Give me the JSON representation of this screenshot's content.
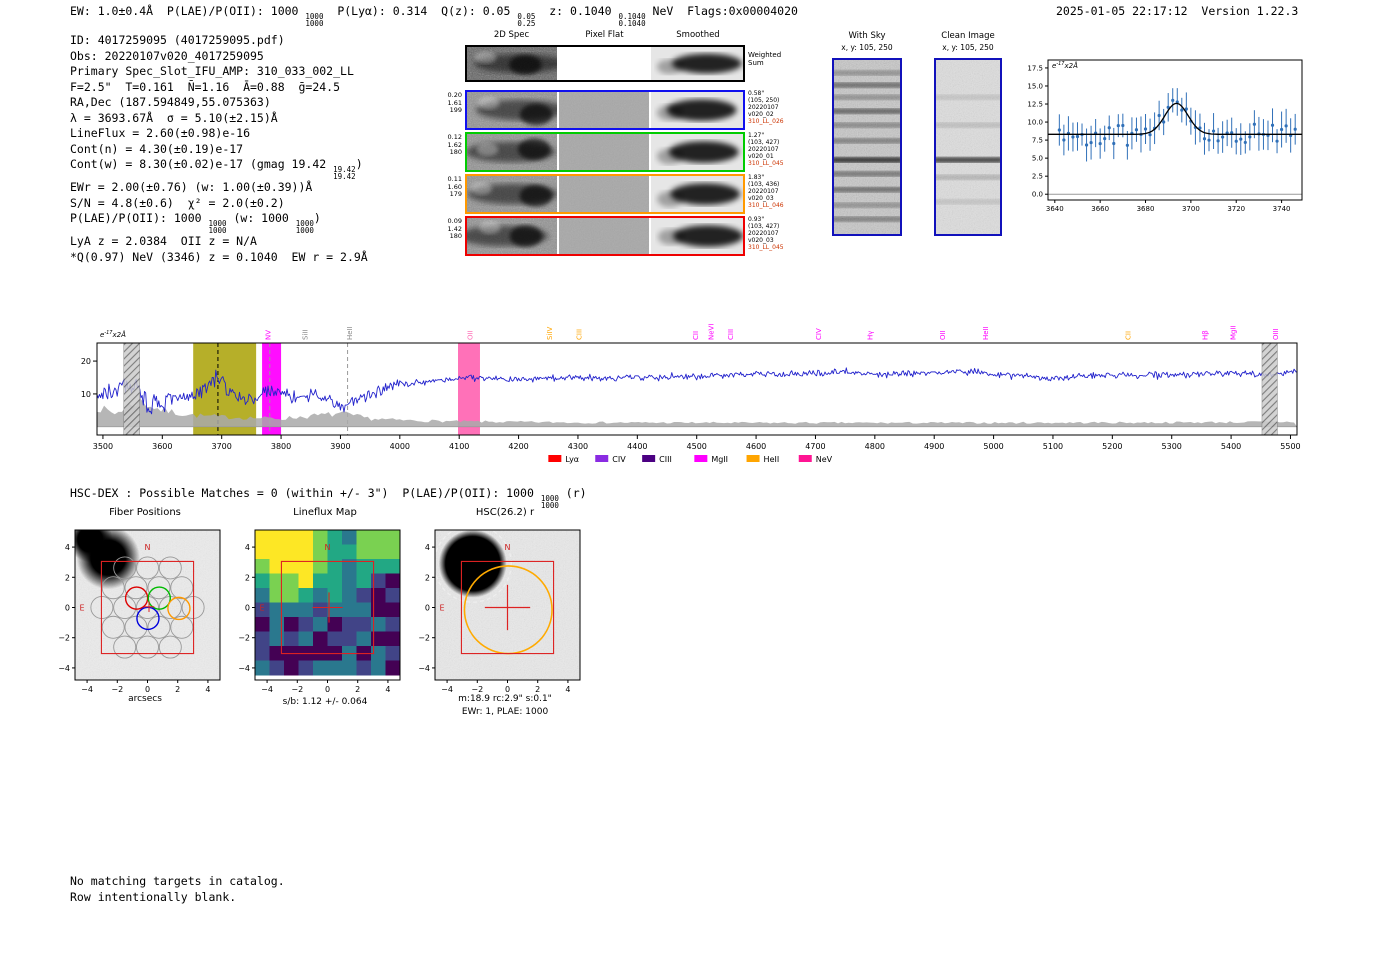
{
  "header": {
    "left_segments": [
      {
        "t": "EW: 1.0±0.4Å  P(LAE)/P(OII): 1000 "
      },
      {
        "f": [
          "1000",
          "1000"
        ]
      },
      {
        "t": "  P(Lyα): 0.314  Q(z): 0.05 "
      },
      {
        "f": [
          "0.05",
          "0.25"
        ]
      },
      {
        "t": "  z: 0.1040 "
      },
      {
        "f": [
          "0.1040",
          "0.1040"
        ]
      },
      {
        "t": " NeV  Flags:0x00004020"
      }
    ],
    "right": "2025-01-05 22:17:12  Version 1.22.3"
  },
  "info_lines": [
    [
      {
        "t": "ID: 4017259095 (4017259095.pdf)"
      }
    ],
    [
      {
        "t": "Obs: 20220107v020_4017259095"
      }
    ],
    [
      {
        "t": "Primary Spec_Slot_IFU_AMP: 310_033_002_LL"
      }
    ],
    [
      {
        "t": "F=2.5\"  T=0.161  N̄=1.16  Ā=0.88  ḡ=24.5"
      }
    ],
    [
      {
        "t": "RA,Dec (187.594849,55.075363)"
      }
    ],
    [
      {
        "t": "λ = 3693.67Å  σ = 5.10(±2.15)Å"
      }
    ],
    [
      {
        "t": "LineFlux = 2.60(±0.98)e-16"
      }
    ],
    [
      {
        "t": "Cont(n) = 4.30(±0.19)e-17"
      }
    ],
    [
      {
        "t": "Cont(w) = 8.30(±0.02)e-17 (gmag 19.42 "
      },
      {
        "f": [
          "19.42",
          "19.42"
        ]
      },
      {
        "t": ")"
      }
    ],
    [
      {
        "t": "EWr = 2.00(±0.76) (w: 1.00(±0.39))Å"
      }
    ],
    [
      {
        "t": "S/N = 4.8(±0.6)  χ² = 2.0(±0.2)"
      }
    ],
    [
      {
        "t": "P(LAE)/P(OII): 1000 "
      },
      {
        "f": [
          "1000",
          "1000"
        ]
      },
      {
        "t": " (w: 1000 "
      },
      {
        "f": [
          "1000",
          "1000"
        ]
      },
      {
        "t": ")"
      }
    ],
    [
      {
        "t": "LyA z = 2.0384  OII z = N/A"
      }
    ],
    [
      {
        "t": "*Q(0.97) NeV (3346) z = 0.1040  EW r = 2.9Å"
      }
    ]
  ],
  "spec2d": {
    "col_headers": [
      "2D Spec",
      "Pixel Flat",
      "Smoothed"
    ],
    "weighted_sum_lines": [
      "Weighted",
      "Sum"
    ],
    "rows": [
      {
        "border": "#000000",
        "left_labels": [],
        "right_lines": []
      },
      {
        "border": "#1010ee",
        "left_labels": [
          "0.20",
          "1.61",
          "199"
        ],
        "right_lines": [
          "0.58\"",
          "(105, 250)",
          "20220107",
          "v020_02",
          "310_LL_026"
        ]
      },
      {
        "border": "#00cc00",
        "left_labels": [
          "0.12",
          "1.62",
          "180"
        ],
        "right_lines": [
          "1.27\"",
          "(103, 427)",
          "20220107",
          "v020_01",
          "310_LL_045"
        ]
      },
      {
        "border": "#ff9900",
        "left_labels": [
          "0.11",
          "1.60",
          "179"
        ],
        "right_lines": [
          "1.83\"",
          "(103, 436)",
          "20220107",
          "v020_03",
          "310_LL_046"
        ]
      },
      {
        "border": "#ee0000",
        "left_labels": [
          "0.09",
          "1.42",
          "180"
        ],
        "right_lines": [
          "0.93\"",
          "(103, 427)",
          "20220107",
          "v020_03",
          "310_LL_045"
        ]
      }
    ]
  },
  "sky_panels": {
    "with_sky": {
      "title": "With Sky",
      "coords": "x, y: 105, 250"
    },
    "clean": {
      "title": "Clean Image",
      "coords": "x, y: 105, 250"
    }
  },
  "hsc_dex_segments": [
    {
      "t": "HSC-DEX : Possible Matches = 0 (within +/- 3\")  P(LAE)/P(OII): 1000 "
    },
    {
      "f": [
        "1000",
        "1000"
      ]
    },
    {
      "t": " (r)"
    }
  ],
  "footer_lines": [
    "No matching targets in catalog.",
    "Row intentionally blank."
  ],
  "chart_data": [
    {
      "id": "line_fit",
      "type": "scatter",
      "description": "Zoom on detected emission line with Gaussian fit",
      "ylabel": {
        "base": "e",
        "sup": "-17",
        "rest": "x2Å"
      },
      "x_ticks": [
        3640,
        3660,
        3680,
        3700,
        3720,
        3740
      ],
      "y_ticks": [
        0,
        2.5,
        5,
        7.5,
        10,
        12.5,
        15,
        17.5
      ],
      "x_range": [
        3637,
        3749
      ],
      "y_range": [
        -0.8,
        18.6
      ],
      "continuum_level": 8.3,
      "gaussian_fit": {
        "center": 3693.67,
        "sigma": 5.1,
        "peak": 12.6
      },
      "noise_sigma": 1.5,
      "error_bar": 2.0,
      "point_step": 2,
      "marker_color": "#3070b8",
      "fit_color": "#000000",
      "seed": 42
    },
    {
      "id": "full_spectrum",
      "type": "line",
      "description": "Full 1D spectrum",
      "ylabel": {
        "base": "e",
        "sup": "-17",
        "rest": "x2Å"
      },
      "line_color": "#2222cc",
      "x_ticks": [
        3500,
        3600,
        3700,
        3800,
        3900,
        4000,
        4100,
        4200,
        4300,
        4400,
        4500,
        4600,
        4700,
        4800,
        4900,
        5000,
        5100,
        5200,
        5300,
        5400,
        5500
      ],
      "y_ticks": [
        10,
        20
      ],
      "x_range": [
        3490,
        5511
      ],
      "y_range": [
        -2.5,
        25.5
      ],
      "anchors": [
        [
          3490,
          9
        ],
        [
          3520,
          11
        ],
        [
          3555,
          13
        ],
        [
          3580,
          6
        ],
        [
          3620,
          8
        ],
        [
          3655,
          10
        ],
        [
          3675,
          12
        ],
        [
          3694,
          15.5
        ],
        [
          3710,
          11
        ],
        [
          3740,
          8
        ],
        [
          3770,
          10
        ],
        [
          3800,
          11
        ],
        [
          3830,
          8
        ],
        [
          3860,
          10
        ],
        [
          3900,
          6
        ],
        [
          3930,
          8
        ],
        [
          3960,
          11
        ],
        [
          4000,
          13
        ],
        [
          4050,
          14
        ],
        [
          4120,
          15
        ],
        [
          4200,
          14.5
        ],
        [
          4300,
          15
        ],
        [
          4400,
          15
        ],
        [
          4500,
          15.5
        ],
        [
          4600,
          16
        ],
        [
          4700,
          16
        ],
        [
          4750,
          17
        ],
        [
          4800,
          16
        ],
        [
          4900,
          16.5
        ],
        [
          4950,
          17
        ],
        [
          5000,
          16
        ],
        [
          5050,
          15.5
        ],
        [
          5100,
          14.5
        ],
        [
          5150,
          15.5
        ],
        [
          5200,
          16
        ],
        [
          5250,
          15.5
        ],
        [
          5300,
          16
        ],
        [
          5350,
          16
        ],
        [
          5400,
          16.5
        ],
        [
          5450,
          16
        ],
        [
          5511,
          16.5
        ]
      ],
      "noise": {
        "amp_blue": 2.1,
        "amp_red": 1.0,
        "split": 4000
      },
      "error_anchors": [
        [
          3490,
          6
        ],
        [
          3520,
          4
        ],
        [
          3560,
          8
        ],
        [
          3600,
          5
        ],
        [
          3650,
          3.5
        ],
        [
          3700,
          3
        ],
        [
          3800,
          2.5
        ],
        [
          3900,
          4
        ],
        [
          3950,
          2.5
        ],
        [
          4000,
          2
        ],
        [
          4100,
          1.6
        ],
        [
          4300,
          1.3
        ],
        [
          4600,
          1.2
        ],
        [
          5000,
          1.2
        ],
        [
          5300,
          1.3
        ],
        [
          5511,
          1.5
        ]
      ],
      "bands": [
        {
          "x": [
            3535,
            3562
          ],
          "type": "hatch"
        },
        {
          "x": [
            3652,
            3758
          ],
          "type": "solid",
          "color": "#b2ab1e"
        },
        {
          "x": [
            3768,
            3800
          ],
          "type": "solid",
          "color": "#ff00ff"
        },
        {
          "x": [
            4098,
            4135
          ],
          "type": "solid",
          "color": "#ff69b4"
        },
        {
          "x": [
            5452,
            5478
          ],
          "type": "hatch"
        }
      ],
      "vlines": [
        {
          "x": 3693.67,
          "color": "#000000"
        },
        {
          "x": 3781,
          "color": "#999999"
        },
        {
          "x": 3912,
          "color": "#999999"
        }
      ],
      "line_labels": [
        {
          "wl": 3778,
          "label": "NV",
          "color": "#ff00ff"
        },
        {
          "wl": 3840,
          "label": "SiII",
          "color": "#888888"
        },
        {
          "wl": 3915,
          "label": "HeII",
          "color": "#888888"
        },
        {
          "wl": 4118,
          "label": "OII",
          "color": "#ff69b4"
        },
        {
          "wl": 4252,
          "label": "SiIV",
          "color": "#ffa500"
        },
        {
          "wl": 4302,
          "label": "CIII",
          "color": "#ffa500"
        },
        {
          "wl": 4498,
          "label": "CII",
          "color": "#ff00ff"
        },
        {
          "wl": 4524,
          "label": "NeVI",
          "color": "#ff00ff"
        },
        {
          "wl": 4557,
          "label": "CIII",
          "color": "#ff00ff"
        },
        {
          "wl": 4705,
          "label": "CIV",
          "color": "#ff00ff"
        },
        {
          "wl": 4792,
          "label": "Hγ",
          "color": "#ff00ff"
        },
        {
          "wl": 4914,
          "label": "OII",
          "color": "#ff00ff"
        },
        {
          "wl": 4986,
          "label": "HeII",
          "color": "#ff00ff"
        },
        {
          "wl": 5226,
          "label": "CII",
          "color": "#ffa500"
        },
        {
          "wl": 5356,
          "label": "Hβ",
          "color": "#ff00ff"
        },
        {
          "wl": 5403,
          "label": "MgII",
          "color": "#ff00ff"
        },
        {
          "wl": 5475,
          "label": "OIII",
          "color": "#ff00ff"
        }
      ],
      "legend": [
        {
          "label": "Lyα",
          "color": "#ff0000"
        },
        {
          "label": "CIV",
          "color": "#8a2be2"
        },
        {
          "label": "CIII",
          "color": "#4b0082"
        },
        {
          "label": "MgII",
          "color": "#ff00ff"
        },
        {
          "label": "HeII",
          "color": "#ffa500"
        },
        {
          "label": "NeV",
          "color": "#ff1493"
        }
      ],
      "seed": 7
    },
    {
      "id": "fiber_positions",
      "type": "scatter",
      "title": "Fiber Positions",
      "xlabel": "arcsecs",
      "ticks": [
        -4,
        -2,
        0,
        2,
        4
      ],
      "box_halfwidth": 3.05,
      "fiber_radius": 0.73,
      "fiber_grid": [
        [
          -1.51,
          2.62
        ],
        [
          0,
          2.62
        ],
        [
          1.51,
          2.62
        ],
        [
          -2.27,
          1.31
        ],
        [
          -0.76,
          1.31
        ],
        [
          0.76,
          1.31
        ],
        [
          2.27,
          1.31
        ],
        [
          -3.02,
          0
        ],
        [
          -1.51,
          0
        ],
        [
          0,
          0
        ],
        [
          1.51,
          0
        ],
        [
          3.02,
          0
        ],
        [
          -2.27,
          -1.31
        ],
        [
          -0.76,
          -1.31
        ],
        [
          0.76,
          -1.31
        ],
        [
          2.27,
          -1.31
        ],
        [
          -1.51,
          -2.62
        ],
        [
          0,
          -2.62
        ],
        [
          1.51,
          -2.62
        ]
      ],
      "highlight_fibers": [
        {
          "x": -0.72,
          "y": 0.62,
          "color": "#dd0000"
        },
        {
          "x": 0.78,
          "y": 0.62,
          "color": "#00bb00"
        },
        {
          "x": 0.03,
          "y": -0.72,
          "color": "#0000dd"
        },
        {
          "x": 2.08,
          "y": -0.06,
          "color": "#ff9900"
        }
      ],
      "compass": {
        "n": "N",
        "e": "E",
        "color": "#cc2222"
      }
    },
    {
      "id": "lineflux_map",
      "type": "heatmap",
      "title": "Lineflux Map",
      "caption": "s/b: 1.12 +/- 0.064",
      "ticks": [
        -4,
        -2,
        0,
        2,
        4
      ],
      "palette": [
        "#440154",
        "#414487",
        "#2a788e",
        "#22a884",
        "#7ad151",
        "#fde725"
      ],
      "grid_n": 10,
      "hotspots": [
        {
          "x": -2.7,
          "y": 3.4,
          "amp": 2.0,
          "sigma": 2.1
        },
        {
          "x": 3.7,
          "y": 4.3,
          "amp": 1.2,
          "sigma": 1.3
        }
      ],
      "noise_amp": 0.55,
      "thresholds": [
        1.45,
        1.0,
        0.62,
        0.38,
        0.2
      ],
      "box_halfwidth": 3.05,
      "compass": {
        "n": "N",
        "e": "E",
        "color": "#cc2222"
      },
      "seed": 13
    },
    {
      "id": "hsc_r",
      "type": "image-cutout",
      "title": "HSC(26.2) r",
      "captions": [
        "m:18.9 rc:2.9\"  s:0.1\"",
        "EWr: 1, PLAE: 1000"
      ],
      "ticks": [
        -4,
        -2,
        0,
        2,
        4
      ],
      "source_blob": {
        "x": -2.3,
        "y": 2.9,
        "r": 2.25
      },
      "dashed_circle": {
        "x": -2.3,
        "y": 2.9,
        "r": 2.55,
        "color": "#eeeeee"
      },
      "aperture_circle": {
        "x": 0.05,
        "y": -0.15,
        "r": 2.9,
        "color": "#ffaa00"
      },
      "box_halfwidth": 3.05,
      "compass": {
        "n": "N",
        "e": "E",
        "color": "#cc2222"
      },
      "seed": 21
    }
  ]
}
